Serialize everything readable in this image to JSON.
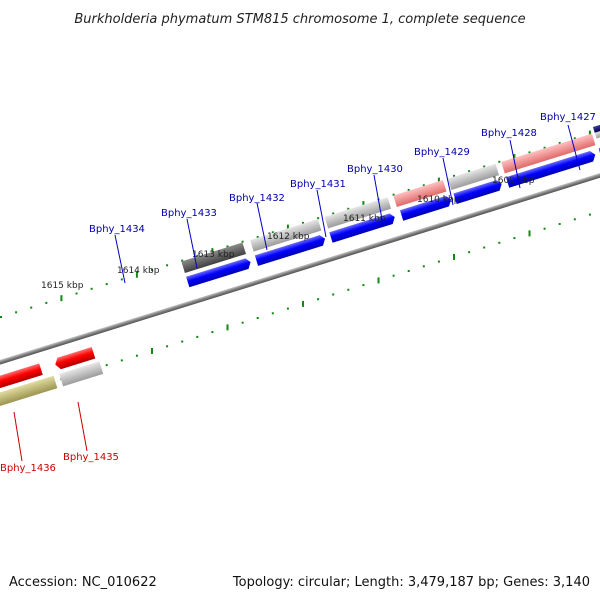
{
  "title": "Burkholderia phymatum STM815 chromosome 1, complete sequence",
  "footer": {
    "accession": "Accession: NC_010622",
    "summary": "Topology: circular; Length: 3,479,187 bp; Genes: 3,140"
  },
  "ticks": [
    "1609 kbp",
    "1610 kbp",
    "1611 kbp",
    "1612 kbp",
    "1613 kbp",
    "1614 kbp",
    "1615 kbp"
  ],
  "genes_top": [
    "Bphy_1427",
    "Bphy_1428",
    "Bphy_1429",
    "Bphy_1430",
    "Bphy_1431",
    "Bphy_1432",
    "Bphy_1433",
    "Bphy_1434"
  ],
  "genes_bottom": [
    "Bphy_1435",
    "Bphy_1436"
  ],
  "colors": {
    "forward_cds": "#0000ff",
    "reverse_cds": "#ff0000",
    "label_forward": "#0000aa",
    "label_reverse": "#cc0000",
    "tick_green": "#118811",
    "backbone": "#888888"
  }
}
